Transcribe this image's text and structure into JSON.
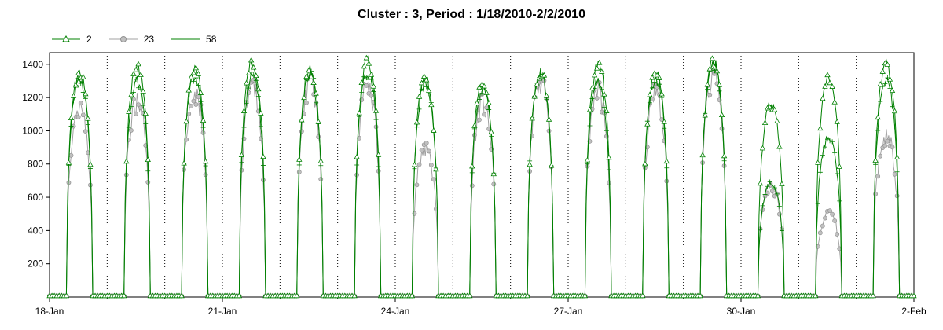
{
  "chart_data": {
    "type": "line",
    "title": "Cluster : 3, Period : 1/18/2010-2/2/2010",
    "xlabel": "",
    "ylabel": "",
    "x_ticks": [
      "18-Jan",
      "21-Jan",
      "24-Jan",
      "27-Jan",
      "30-Jan",
      "2-Feb"
    ],
    "x_range_days": [
      0,
      15
    ],
    "y_ticks": [
      200,
      400,
      600,
      800,
      1000,
      1200,
      1400
    ],
    "ylim": [
      0,
      1470
    ],
    "grid": "vertical dotted at midnight",
    "legend_position": "top-left",
    "series": [
      {
        "name": "2",
        "color": "#008000",
        "marker": "triangle",
        "daily_peaks": [
          1380,
          1420,
          1400,
          1450,
          1400,
          1450,
          1340,
          1310,
          1390,
          1430,
          1380,
          1450,
          1190,
          1350,
          1430
        ]
      },
      {
        "name": "23",
        "color": "#a0a0a0",
        "marker": "circle",
        "daily_peaks": [
          1210,
          1250,
          1300,
          1320,
          1340,
          1350,
          940,
          1250,
          1360,
          1310,
          1290,
          1420,
          710,
          540,
          1030
        ]
      },
      {
        "name": "58",
        "color": "#008000",
        "marker": "plus",
        "daily_peaks": [
          1340,
          1330,
          1360,
          1360,
          1370,
          1380,
          1320,
          1290,
          1380,
          1340,
          1340,
          1440,
          700,
          980,
          1330
        ]
      }
    ]
  }
}
